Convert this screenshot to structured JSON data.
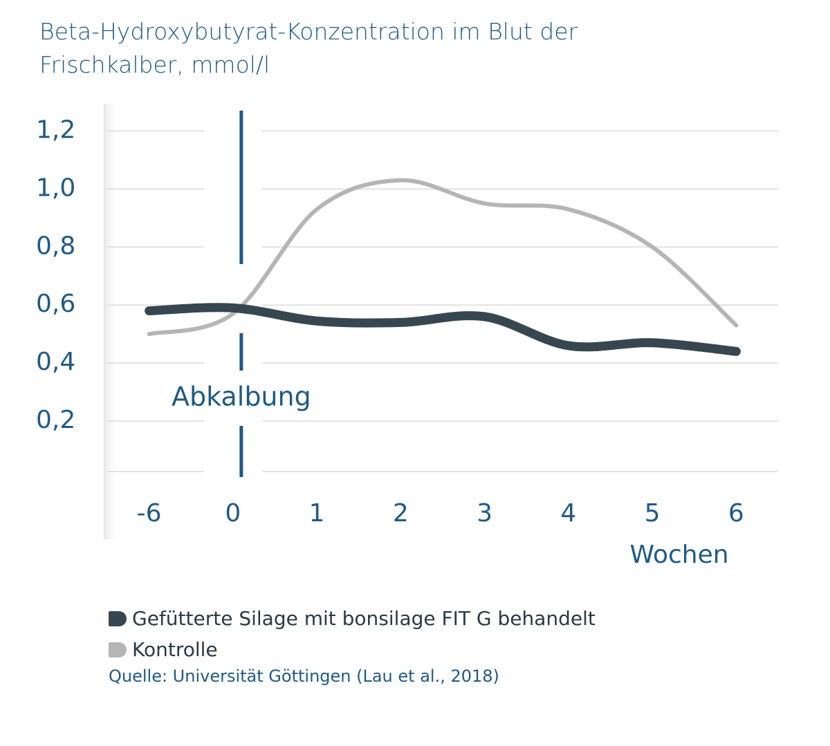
{
  "chart_data": {
    "type": "line",
    "title": "Beta-Hydroxybutyrat-Konzentration im Blut der Frischkalber, mmol/l",
    "categories": [
      "-6",
      "0",
      "1",
      "2",
      "3",
      "4",
      "5",
      "6"
    ],
    "x_label": "Wochen",
    "annotation": "Abkalbung",
    "series": [
      {
        "name": "Gefütterte Silage mit bonsilage FIT G behandelt",
        "color": "#37474f",
        "values": [
          0.58,
          0.59,
          0.545,
          0.54,
          0.56,
          0.46,
          0.47,
          0.44
        ]
      },
      {
        "name": "Kontrolle",
        "color": "#b5b5b5",
        "values": [
          0.5,
          0.57,
          0.93,
          1.03,
          0.95,
          0.93,
          0.8,
          0.53
        ]
      }
    ],
    "ylim": [
      0,
      1.27
    ],
    "yticks": [
      {
        "value": 0.2,
        "label": "0,2"
      },
      {
        "value": 0.4,
        "label": "0,4"
      },
      {
        "value": 0.6,
        "label": "0,6"
      },
      {
        "value": 0.8,
        "label": "0,8"
      },
      {
        "value": 1.0,
        "label": "1,0"
      },
      {
        "value": 1.2,
        "label": "1,2"
      }
    ],
    "grid": true,
    "source": "Quelle: Universität Göttingen (Lau et al., 2018)"
  }
}
